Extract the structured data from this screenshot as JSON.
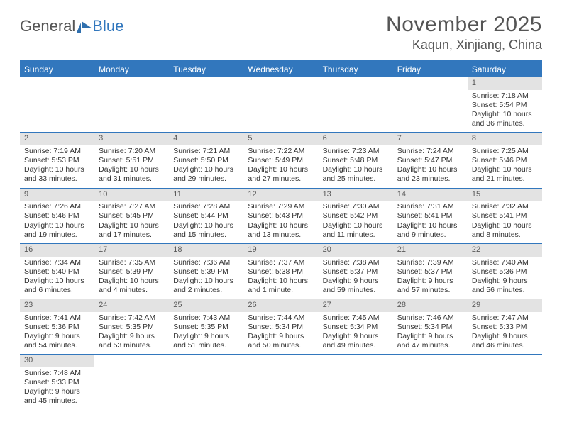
{
  "brand": {
    "word1": "General",
    "word2": "Blue"
  },
  "title": "November 2025",
  "location": "Kaqun, Xinjiang, China",
  "weekdays": [
    "Sunday",
    "Monday",
    "Tuesday",
    "Wednesday",
    "Thursday",
    "Friday",
    "Saturday"
  ],
  "colors": {
    "accent": "#3277bd",
    "dayNumBg": "#e3e3e3",
    "text": "#333333",
    "headerGray": "#555555"
  },
  "days": [
    {
      "n": 1,
      "sunrise": "7:18 AM",
      "sunset": "5:54 PM",
      "daylight": "10 hours and 36 minutes."
    },
    {
      "n": 2,
      "sunrise": "7:19 AM",
      "sunset": "5:53 PM",
      "daylight": "10 hours and 33 minutes."
    },
    {
      "n": 3,
      "sunrise": "7:20 AM",
      "sunset": "5:51 PM",
      "daylight": "10 hours and 31 minutes."
    },
    {
      "n": 4,
      "sunrise": "7:21 AM",
      "sunset": "5:50 PM",
      "daylight": "10 hours and 29 minutes."
    },
    {
      "n": 5,
      "sunrise": "7:22 AM",
      "sunset": "5:49 PM",
      "daylight": "10 hours and 27 minutes."
    },
    {
      "n": 6,
      "sunrise": "7:23 AM",
      "sunset": "5:48 PM",
      "daylight": "10 hours and 25 minutes."
    },
    {
      "n": 7,
      "sunrise": "7:24 AM",
      "sunset": "5:47 PM",
      "daylight": "10 hours and 23 minutes."
    },
    {
      "n": 8,
      "sunrise": "7:25 AM",
      "sunset": "5:46 PM",
      "daylight": "10 hours and 21 minutes."
    },
    {
      "n": 9,
      "sunrise": "7:26 AM",
      "sunset": "5:46 PM",
      "daylight": "10 hours and 19 minutes."
    },
    {
      "n": 10,
      "sunrise": "7:27 AM",
      "sunset": "5:45 PM",
      "daylight": "10 hours and 17 minutes."
    },
    {
      "n": 11,
      "sunrise": "7:28 AM",
      "sunset": "5:44 PM",
      "daylight": "10 hours and 15 minutes."
    },
    {
      "n": 12,
      "sunrise": "7:29 AM",
      "sunset": "5:43 PM",
      "daylight": "10 hours and 13 minutes."
    },
    {
      "n": 13,
      "sunrise": "7:30 AM",
      "sunset": "5:42 PM",
      "daylight": "10 hours and 11 minutes."
    },
    {
      "n": 14,
      "sunrise": "7:31 AM",
      "sunset": "5:41 PM",
      "daylight": "10 hours and 9 minutes."
    },
    {
      "n": 15,
      "sunrise": "7:32 AM",
      "sunset": "5:41 PM",
      "daylight": "10 hours and 8 minutes."
    },
    {
      "n": 16,
      "sunrise": "7:34 AM",
      "sunset": "5:40 PM",
      "daylight": "10 hours and 6 minutes."
    },
    {
      "n": 17,
      "sunrise": "7:35 AM",
      "sunset": "5:39 PM",
      "daylight": "10 hours and 4 minutes."
    },
    {
      "n": 18,
      "sunrise": "7:36 AM",
      "sunset": "5:39 PM",
      "daylight": "10 hours and 2 minutes."
    },
    {
      "n": 19,
      "sunrise": "7:37 AM",
      "sunset": "5:38 PM",
      "daylight": "10 hours and 1 minute."
    },
    {
      "n": 20,
      "sunrise": "7:38 AM",
      "sunset": "5:37 PM",
      "daylight": "9 hours and 59 minutes."
    },
    {
      "n": 21,
      "sunrise": "7:39 AM",
      "sunset": "5:37 PM",
      "daylight": "9 hours and 57 minutes."
    },
    {
      "n": 22,
      "sunrise": "7:40 AM",
      "sunset": "5:36 PM",
      "daylight": "9 hours and 56 minutes."
    },
    {
      "n": 23,
      "sunrise": "7:41 AM",
      "sunset": "5:36 PM",
      "daylight": "9 hours and 54 minutes."
    },
    {
      "n": 24,
      "sunrise": "7:42 AM",
      "sunset": "5:35 PM",
      "daylight": "9 hours and 53 minutes."
    },
    {
      "n": 25,
      "sunrise": "7:43 AM",
      "sunset": "5:35 PM",
      "daylight": "9 hours and 51 minutes."
    },
    {
      "n": 26,
      "sunrise": "7:44 AM",
      "sunset": "5:34 PM",
      "daylight": "9 hours and 50 minutes."
    },
    {
      "n": 27,
      "sunrise": "7:45 AM",
      "sunset": "5:34 PM",
      "daylight": "9 hours and 49 minutes."
    },
    {
      "n": 28,
      "sunrise": "7:46 AM",
      "sunset": "5:34 PM",
      "daylight": "9 hours and 47 minutes."
    },
    {
      "n": 29,
      "sunrise": "7:47 AM",
      "sunset": "5:33 PM",
      "daylight": "9 hours and 46 minutes."
    },
    {
      "n": 30,
      "sunrise": "7:48 AM",
      "sunset": "5:33 PM",
      "daylight": "9 hours and 45 minutes."
    }
  ],
  "labels": {
    "sunrise": "Sunrise:",
    "sunset": "Sunset:",
    "daylight": "Daylight:"
  },
  "layout": {
    "firstWeekdayIndex": 6,
    "daysInMonth": 30
  }
}
